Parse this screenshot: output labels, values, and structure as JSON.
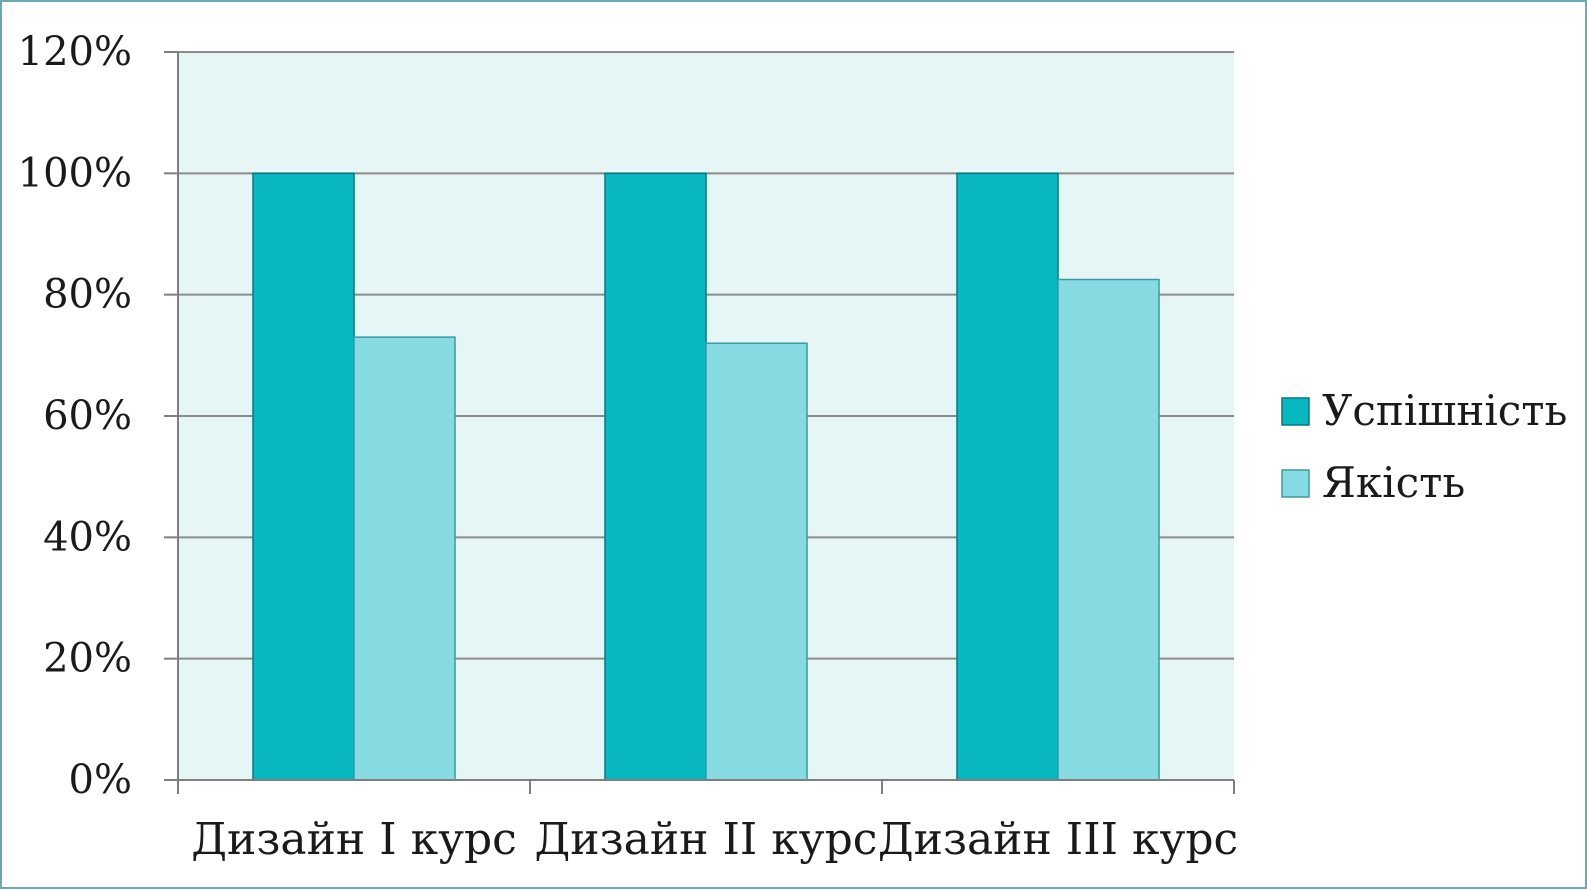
{
  "colors": {
    "plot_background": "#e6f5f6",
    "gridline": "#8c8c8c",
    "axis": "#7f7f7f",
    "frame_border": "#6fa8b4"
  },
  "chart_data": {
    "type": "bar",
    "categories": [
      "Дизайн I курс",
      "Дизайн II курс",
      "Дизайн III курс"
    ],
    "series": [
      {
        "name": "Успішність",
        "values": [
          100,
          100,
          100
        ],
        "color": "#07b8c0",
        "stroke": "#06787d"
      },
      {
        "name": "Якість",
        "values": [
          73,
          72,
          82.5
        ],
        "color": "#86dbe2",
        "stroke": "#3a9aa2"
      }
    ],
    "y_ticks": [
      "0%",
      "20%",
      "40%",
      "60%",
      "80%",
      "100%",
      "120%"
    ],
    "ylim": [
      0,
      120
    ],
    "grid": true,
    "legend_position": "right",
    "title": "",
    "xlabel": "",
    "ylabel": ""
  }
}
